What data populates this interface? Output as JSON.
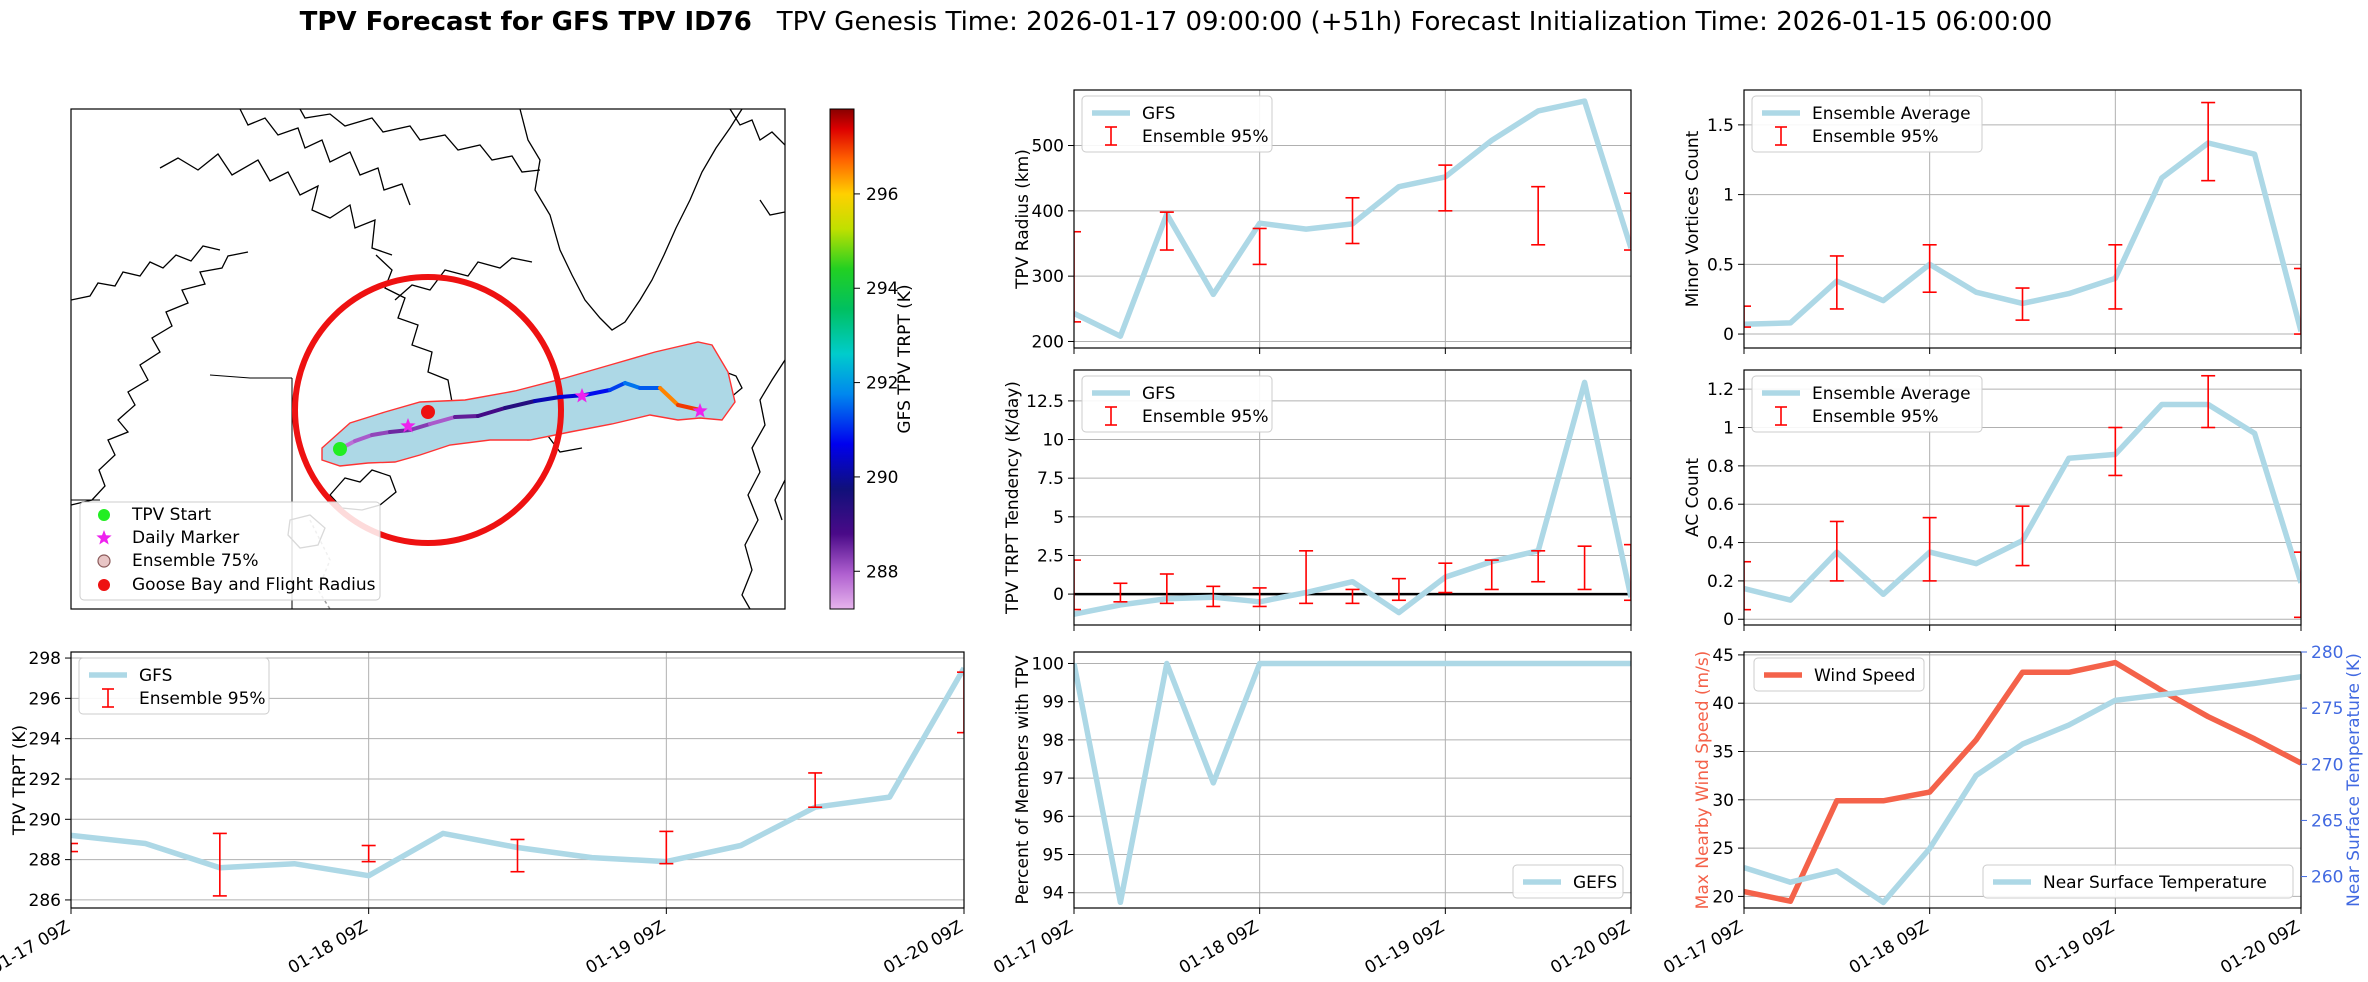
{
  "title": {
    "bold": "TPV Forecast for GFS TPV ID76",
    "rest": "TPV Genesis Time: 2026-01-17 09:00:00 (+51h)   Forecast Initialization Time: 2026-01-15 06:00:00"
  },
  "colors": {
    "gfs_line": "#add8e6",
    "error_bar": "#ff0000",
    "wind": "#f4624a",
    "temp_axis": "#4169e1",
    "track_fill": "#add8e6",
    "radius_circle": "#ff0000",
    "start_marker": "#22ee22",
    "daily_marker": "#ee22ee",
    "goose_bay": "#ee1111"
  },
  "time_ticks": [
    "01-17 09Z",
    "01-18 09Z",
    "01-19 09Z",
    "01-20 09Z"
  ],
  "map": {
    "legend": [
      {
        "name": "start",
        "label": "TPV Start",
        "symbol": "dot",
        "color": "#22ee22"
      },
      {
        "name": "daily",
        "label": "Daily Marker",
        "symbol": "star",
        "color": "#ee22ee"
      },
      {
        "name": "ensemble",
        "label": "Ensemble 75%",
        "symbol": "hollow",
        "color": "#d9a0a0"
      },
      {
        "name": "goose-bay",
        "label": "Goose Bay and Flight Radius",
        "symbol": "dot",
        "color": "#ee1111"
      }
    ],
    "colorbar": {
      "label": "GFS TPV TRPT (K)",
      "range": [
        287.2,
        297.8
      ],
      "ticks": [
        288,
        290,
        292,
        294,
        296
      ]
    },
    "track_temps": [
      287.8,
      288.0,
      288.2,
      288.5,
      288.3,
      288.0,
      288.6,
      288.9,
      289.4,
      290.2,
      290.5,
      290.8,
      291.2,
      291.6,
      291.4,
      296.5,
      297.0
    ]
  },
  "chart_data": [
    {
      "id": "radius",
      "type": "line",
      "ylabel": "TPV Radius (km)",
      "ylim": [
        190,
        585
      ],
      "yticks": [
        200,
        300,
        400,
        500
      ],
      "series": [
        {
          "name": "GFS",
          "x": [
            0,
            6,
            12,
            18,
            24,
            30,
            36,
            42,
            48,
            54,
            60,
            66,
            72
          ],
          "values": [
            243,
            208,
            395,
            272,
            381,
            372,
            380,
            437,
            452,
            508,
            553,
            568,
            343
          ]
        }
      ],
      "errorbars": {
        "name": "Ensemble 95%",
        "x": [
          0,
          12,
          24,
          36,
          48,
          60,
          72
        ],
        "low": [
          230,
          340,
          318,
          350,
          400,
          348,
          340
        ],
        "high": [
          368,
          398,
          373,
          420,
          470,
          437,
          427
        ]
      },
      "legend": [
        "GFS",
        "Ensemble 95%"
      ],
      "legend_loc": "upper-left"
    },
    {
      "id": "tendency",
      "type": "line",
      "ylabel": "TPV TRPT Tendency (K/day)",
      "ylim": [
        -2.0,
        14.5
      ],
      "yticks": [
        0.0,
        2.5,
        5.0,
        7.5,
        10.0,
        12.5
      ],
      "hline": 0,
      "series": [
        {
          "name": "GFS",
          "x": [
            0,
            6,
            12,
            18,
            24,
            30,
            36,
            42,
            48,
            54,
            60,
            66,
            72
          ],
          "values": [
            -1.3,
            -0.7,
            -0.3,
            -0.2,
            -0.5,
            0.1,
            0.8,
            -1.2,
            1.1,
            2.1,
            2.8,
            13.7,
            -0.2
          ]
        }
      ],
      "errorbars": {
        "name": "Ensemble 95%",
        "x": [
          0,
          6,
          12,
          18,
          24,
          30,
          36,
          42,
          48,
          54,
          60,
          66,
          72
        ],
        "low": [
          -1.0,
          -0.5,
          -0.6,
          -0.8,
          -0.8,
          -0.6,
          -0.6,
          -0.4,
          0.1,
          0.3,
          0.8,
          0.3,
          -0.4
        ],
        "high": [
          2.2,
          0.7,
          1.3,
          0.5,
          0.4,
          2.8,
          0.3,
          1.0,
          2.0,
          2.2,
          2.8,
          3.1,
          3.2
        ]
      },
      "legend": [
        "GFS",
        "Ensemble 95%"
      ],
      "legend_loc": "upper-left"
    },
    {
      "id": "minor",
      "type": "line",
      "ylabel": "Minor Vortices Count",
      "ylim": [
        -0.1,
        1.75
      ],
      "yticks": [
        0.0,
        0.5,
        1.0,
        1.5
      ],
      "series": [
        {
          "name": "Ensemble Average",
          "x": [
            0,
            6,
            12,
            18,
            24,
            30,
            36,
            42,
            48,
            54,
            60,
            66,
            72
          ],
          "values": [
            0.07,
            0.08,
            0.38,
            0.24,
            0.5,
            0.3,
            0.22,
            0.29,
            0.4,
            1.12,
            1.37,
            1.29,
            0.02
          ]
        }
      ],
      "errorbars": {
        "name": "Ensemble 95%",
        "x": [
          0,
          12,
          24,
          36,
          48,
          60,
          72
        ],
        "low": [
          0.05,
          0.18,
          0.3,
          0.1,
          0.18,
          1.1,
          0.0
        ],
        "high": [
          0.2,
          0.56,
          0.64,
          0.33,
          0.64,
          1.66,
          0.47
        ]
      },
      "legend": [
        "Ensemble Average",
        "Ensemble 95%"
      ],
      "legend_loc": "upper-left"
    },
    {
      "id": "ac",
      "type": "line",
      "ylabel": "AC Count",
      "ylim": [
        -0.03,
        1.3
      ],
      "yticks": [
        0.0,
        0.2,
        0.4,
        0.6,
        0.8,
        1.0,
        1.2
      ],
      "series": [
        {
          "name": "Ensemble Average",
          "x": [
            0,
            6,
            12,
            18,
            24,
            30,
            36,
            42,
            48,
            54,
            60,
            66,
            72
          ],
          "values": [
            0.16,
            0.1,
            0.35,
            0.13,
            0.35,
            0.29,
            0.41,
            0.84,
            0.86,
            1.12,
            1.12,
            0.97,
            0.19
          ]
        }
      ],
      "errorbars": {
        "name": "Ensemble 95%",
        "x": [
          0,
          12,
          24,
          36,
          48,
          60,
          72
        ],
        "low": [
          0.05,
          0.2,
          0.2,
          0.28,
          0.75,
          1.0,
          0.01
        ],
        "high": [
          0.3,
          0.51,
          0.53,
          0.59,
          1.0,
          1.27,
          0.35
        ]
      },
      "legend": [
        "Ensemble Average",
        "Ensemble 95%"
      ],
      "legend_loc": "upper-left"
    },
    {
      "id": "trpt",
      "type": "line",
      "ylabel": "TPV TRPT (K)",
      "ylim": [
        285.6,
        298.3
      ],
      "yticks": [
        286,
        288,
        290,
        292,
        294,
        296,
        298
      ],
      "series": [
        {
          "name": "GFS",
          "x": [
            0,
            6,
            12,
            18,
            24,
            30,
            36,
            42,
            48,
            54,
            60,
            66,
            72
          ],
          "values": [
            289.2,
            288.8,
            287.6,
            287.8,
            287.2,
            289.3,
            288.6,
            288.1,
            287.9,
            288.7,
            290.6,
            291.1,
            297.5
          ]
        }
      ],
      "errorbars": {
        "name": "Ensemble 95%",
        "x": [
          0,
          12,
          24,
          36,
          48,
          60,
          72
        ],
        "low": [
          288.4,
          286.2,
          287.9,
          287.4,
          287.8,
          290.6,
          294.3
        ],
        "high": [
          288.8,
          289.3,
          288.7,
          289.0,
          289.4,
          292.3,
          297.3
        ]
      },
      "legend": [
        "GFS",
        "Ensemble 95%"
      ],
      "legend_loc": "upper-left"
    },
    {
      "id": "members",
      "type": "line",
      "ylabel": "Percent of Members with TPV",
      "ylim": [
        93.6,
        100.3
      ],
      "yticks": [
        94,
        95,
        96,
        97,
        98,
        99,
        100
      ],
      "series": [
        {
          "name": "GEFS",
          "x": [
            0,
            6,
            12,
            18,
            24,
            30,
            36,
            42,
            48,
            54,
            60,
            66,
            72
          ],
          "values": [
            100,
            93.75,
            100,
            96.875,
            100,
            100,
            100,
            100,
            100,
            100,
            100,
            100,
            100
          ]
        }
      ],
      "legend": [
        "GEFS"
      ],
      "legend_loc": "lower-right"
    },
    {
      "id": "wind-temp",
      "type": "line",
      "ylabel": "Max Nearby Wind Speed (m/s)",
      "ylim": [
        18.8,
        45.3
      ],
      "yticks": [
        20,
        25,
        30,
        35,
        40,
        45
      ],
      "ylabel2": "Near Surface Temperature (K)",
      "ylim2": [
        257.2,
        280
      ],
      "yticks2": [
        260,
        265,
        270,
        275,
        280
      ],
      "series": [
        {
          "name": "Wind Speed",
          "axis": "left",
          "x": [
            0,
            6,
            12,
            18,
            24,
            30,
            36,
            42,
            48,
            54,
            60,
            66,
            72
          ],
          "values": [
            20.5,
            19.5,
            29.9,
            29.9,
            30.8,
            36.2,
            43.2,
            43.2,
            44.2,
            41.3,
            38.6,
            36.3,
            33.8
          ]
        },
        {
          "name": "Near Surface Temperature",
          "axis": "right",
          "x": [
            0,
            6,
            12,
            18,
            24,
            30,
            36,
            42,
            48,
            54,
            60,
            66,
            72
          ],
          "values": [
            260.8,
            259.5,
            260.5,
            257.7,
            262.5,
            269.0,
            271.8,
            273.5,
            275.7,
            276.2,
            276.7,
            277.2,
            277.8
          ]
        }
      ],
      "legend": [
        "Wind Speed",
        "Near Surface Temperature"
      ]
    }
  ]
}
